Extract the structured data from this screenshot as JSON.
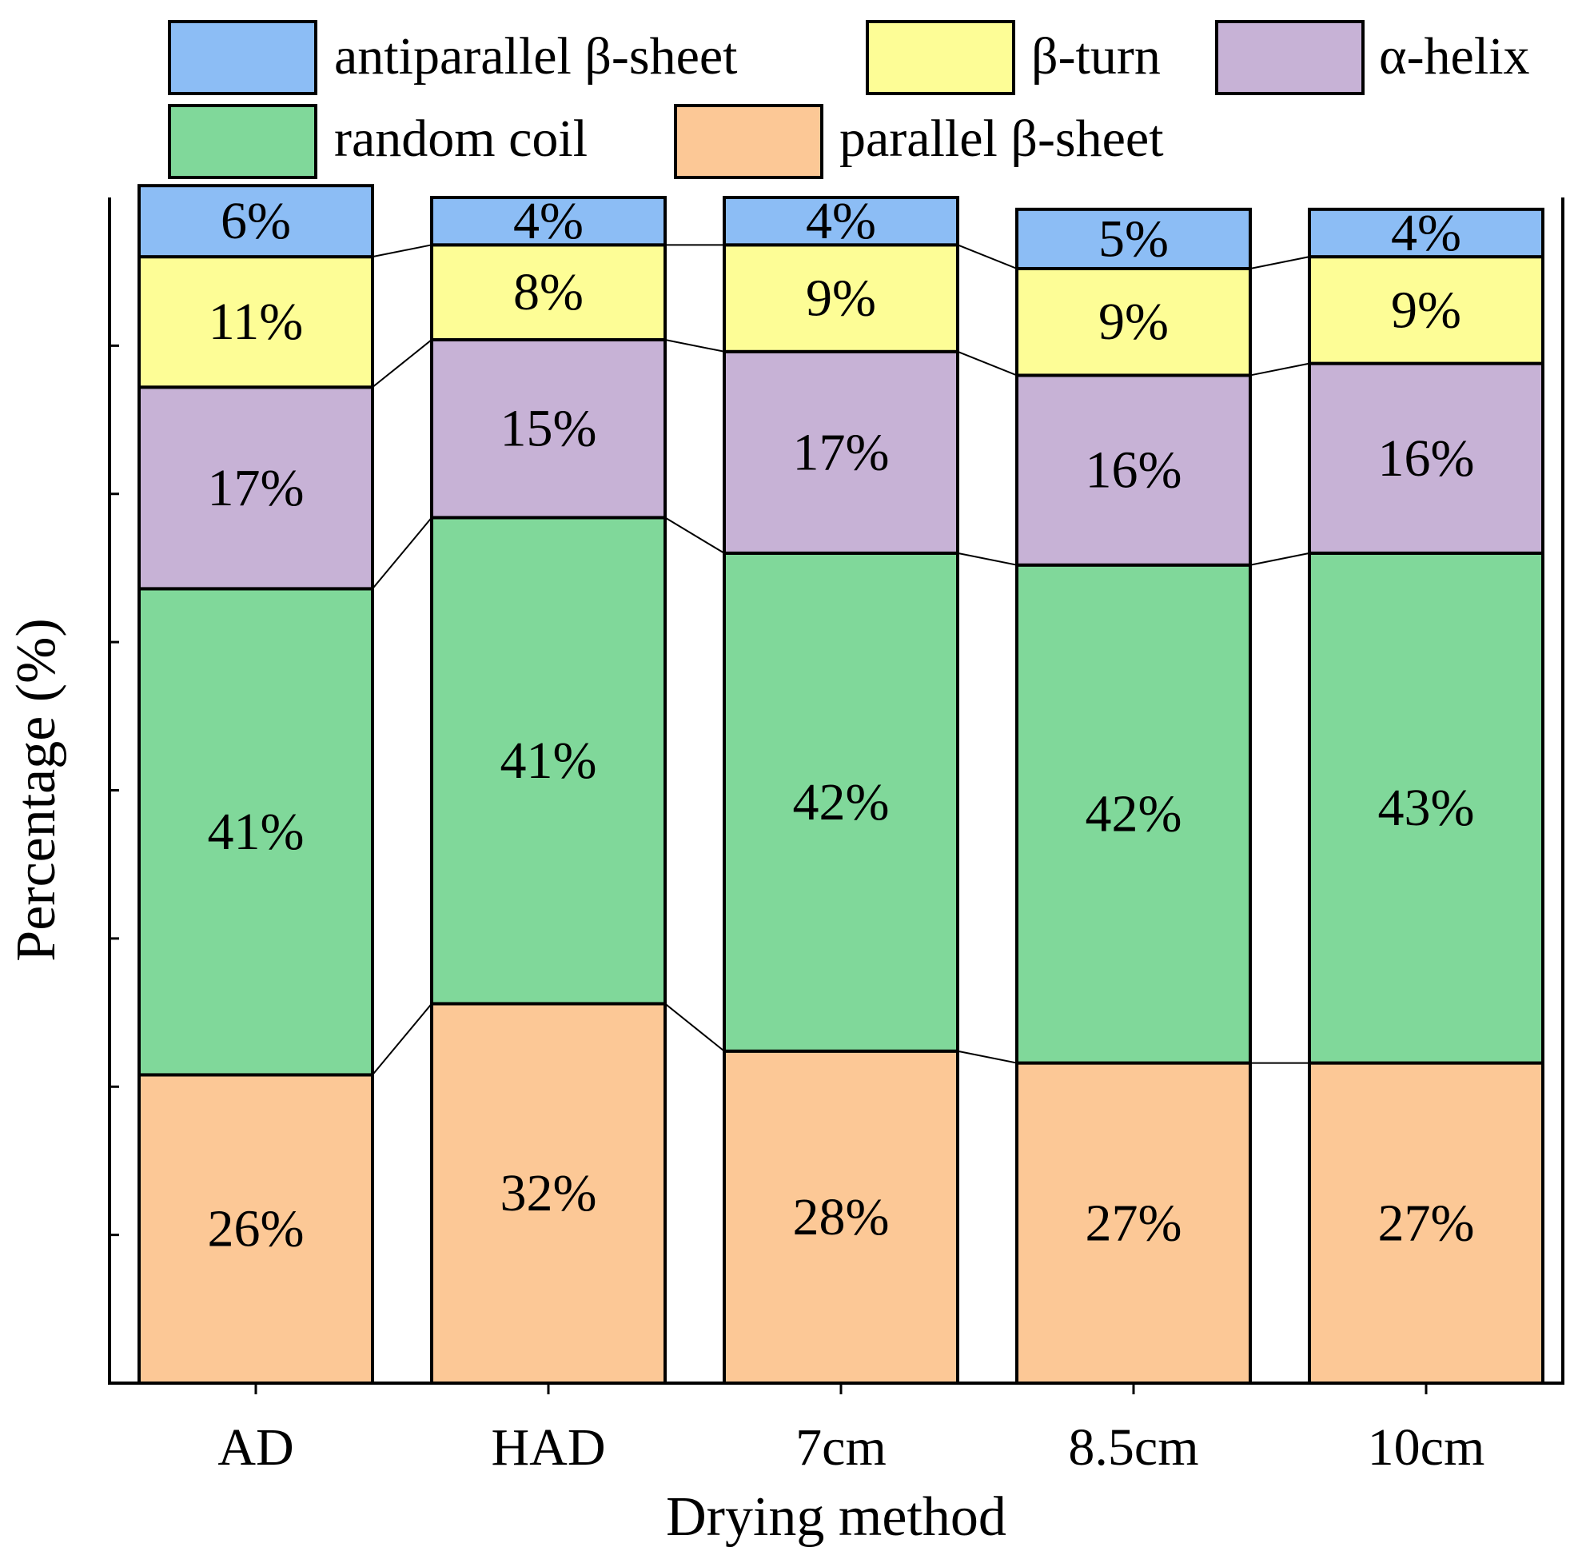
{
  "chart_data": {
    "type": "bar",
    "stacked": true,
    "percent_stacked": true,
    "title": "",
    "xlabel": "Drying method",
    "ylabel": "Percentage (%)",
    "ylim": [
      0,
      100
    ],
    "ytick_labels_shown": false,
    "grid": false,
    "legend_position": "top",
    "connector_lines": true,
    "categories": [
      "AD",
      "HAD",
      "7cm",
      "8.5cm",
      "10cm"
    ],
    "series": [
      {
        "name": "parallel β-sheet",
        "color": "#FCC896",
        "values": [
          26,
          32,
          28,
          27,
          27
        ],
        "labels": [
          "26%",
          "32%",
          "28%",
          "27%",
          "27%"
        ]
      },
      {
        "name": "random coil",
        "color": "#80D89A",
        "values": [
          41,
          41,
          42,
          42,
          43
        ],
        "labels": [
          "41%",
          "41%",
          "42%",
          "42%",
          "43%"
        ]
      },
      {
        "name": "α-helix",
        "color": "#C7B2D6",
        "values": [
          17,
          15,
          17,
          16,
          16
        ],
        "labels": [
          "17%",
          "15%",
          "17%",
          "16%",
          "16%"
        ]
      },
      {
        "name": "β-turn",
        "color": "#FDFD96",
        "values": [
          11,
          8,
          9,
          9,
          9
        ],
        "labels": [
          "11%",
          "8%",
          "9%",
          "9%",
          "9%"
        ]
      },
      {
        "name": "antiparallel β-sheet",
        "color": "#8CBDF5",
        "values": [
          6,
          4,
          4,
          5,
          4
        ],
        "labels": [
          "6%",
          "4%",
          "4%",
          "5%",
          "4%"
        ]
      }
    ],
    "legend_order": [
      "antiparallel β-sheet",
      "β-turn",
      "α-helix",
      "random coil",
      "parallel β-sheet"
    ]
  }
}
